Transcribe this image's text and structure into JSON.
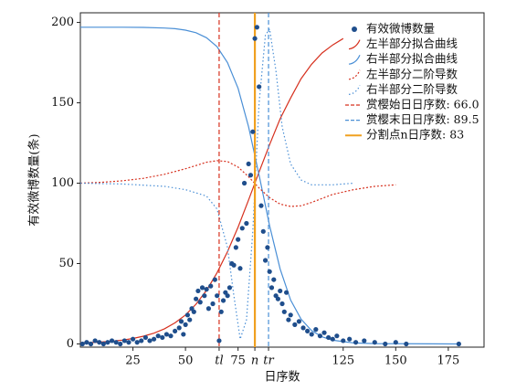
{
  "chart_data": {
    "type": "scatter",
    "xlabel": "日序数",
    "ylabel": "有效微博数量(条)",
    "xlim": [
      0,
      192
    ],
    "ylim": [
      -2,
      206
    ],
    "xticks": [
      25,
      50,
      {
        "value": 66,
        "label": "tl"
      },
      75,
      {
        "value": 83,
        "label": "n"
      },
      {
        "value": 89.5,
        "label": "tr"
      },
      125,
      150,
      175
    ],
    "yticks": [
      0,
      50,
      100,
      150,
      200
    ],
    "scatter": {
      "name": "有效微博数量",
      "color": "#1f4e8c",
      "x": [
        1,
        3,
        5,
        7,
        9,
        11,
        13,
        15,
        17,
        19,
        21,
        23,
        25,
        27,
        29,
        31,
        33,
        35,
        37,
        39,
        41,
        43,
        45,
        47,
        48,
        49,
        50,
        51,
        52,
        53,
        54,
        55,
        56,
        57,
        58,
        59,
        60,
        61,
        62,
        63,
        64,
        65,
        66,
        67,
        68,
        69,
        70,
        71,
        72,
        73,
        74,
        75,
        76,
        77,
        78,
        79,
        80,
        81,
        82,
        83,
        84,
        85,
        86,
        87,
        88,
        89,
        90,
        91,
        92,
        93,
        94,
        95,
        96,
        97,
        98,
        99,
        100,
        102,
        104,
        106,
        108,
        110,
        112,
        114,
        116,
        118,
        120,
        122,
        125,
        128,
        131,
        135,
        140,
        145,
        150,
        155,
        180
      ],
      "y": [
        0,
        1,
        0,
        2,
        1,
        0,
        1,
        2,
        1,
        0,
        2,
        1,
        3,
        1,
        2,
        4,
        2,
        3,
        5,
        4,
        6,
        5,
        8,
        10,
        14,
        6,
        12,
        18,
        15,
        22,
        20,
        28,
        33,
        26,
        35,
        30,
        34,
        22,
        36,
        25,
        40,
        30,
        2,
        20,
        27,
        32,
        30,
        35,
        50,
        49,
        60,
        65,
        47,
        72,
        100,
        75,
        112,
        105,
        132,
        190,
        197,
        160,
        86,
        70,
        52,
        60,
        45,
        35,
        40,
        30,
        28,
        33,
        25,
        20,
        32,
        15,
        18,
        12,
        14,
        10,
        8,
        6,
        9,
        5,
        7,
        4,
        3,
        5,
        2,
        3,
        1,
        2,
        1,
        0,
        1,
        0,
        0
      ]
    },
    "curves": [
      {
        "name": "左半部分拟合曲线",
        "color": "#d6301e",
        "dash": "none",
        "x": [
          0,
          5,
          10,
          15,
          20,
          25,
          30,
          35,
          40,
          45,
          50,
          55,
          60,
          65,
          70,
          75,
          80,
          85,
          90,
          95,
          100,
          105,
          110,
          115,
          120,
          125
        ],
        "values": [
          0.6,
          0.85,
          1.2,
          1.7,
          2.4,
          3.4,
          4.8,
          6.7,
          9.4,
          13.1,
          18.0,
          24.7,
          33.3,
          44.2,
          57.4,
          72.7,
          89.6,
          107,
          124,
          140,
          153,
          165,
          174,
          181,
          186,
          190
        ]
      },
      {
        "name": "右半部分拟合曲线",
        "color": "#4a8fd6",
        "dash": "none",
        "x": [
          0,
          10,
          20,
          30,
          40,
          45,
          50,
          55,
          60,
          65,
          70,
          75,
          80,
          85,
          90,
          95,
          100,
          105,
          110,
          115,
          120,
          130,
          140,
          180
        ],
        "values": [
          197,
          197,
          197,
          196.9,
          196.5,
          196.1,
          195.2,
          193.6,
          190.5,
          185,
          175,
          159,
          135,
          105,
          73.5,
          46.7,
          27.3,
          15.4,
          8.3,
          4.4,
          2.3,
          0.6,
          0.2,
          0
        ]
      },
      {
        "name": "左半部分二阶导数",
        "color": "#d6301e",
        "dash": "2,2",
        "x": [
          0,
          10,
          20,
          30,
          40,
          50,
          55,
          60,
          65,
          70,
          75,
          80,
          85,
          90,
          95,
          100,
          105,
          110,
          115,
          120,
          130,
          140,
          150
        ],
        "values": [
          100,
          100.5,
          101.5,
          103,
          105.5,
          109,
          111,
          113,
          114,
          113.5,
          110,
          104,
          97,
          91,
          87,
          85.5,
          86,
          88,
          90.5,
          93,
          96,
          98,
          99
        ]
      },
      {
        "name": "右半部分二阶导数",
        "color": "#4a8fd6",
        "dash": "1.5,2.5",
        "x": [
          0,
          20,
          40,
          50,
          55,
          60,
          65,
          70,
          73,
          76,
          79,
          82,
          85,
          88,
          90,
          93,
          96,
          100,
          105,
          110,
          120,
          130
        ],
        "values": [
          100,
          99.5,
          98,
          96,
          94,
          92,
          84,
          60,
          30,
          3,
          15,
          70,
          150,
          192,
          196,
          170,
          135,
          112,
          102,
          99,
          99,
          100
        ]
      }
    ],
    "vlines": [
      {
        "name": "赏樱始日日序数: 66.0",
        "color": "#d6301e",
        "dash": "5,3",
        "x": 66
      },
      {
        "name": "赏樱末日日序数: 89.5",
        "color": "#4a8fd6",
        "dash": "5,3",
        "x": 89.5
      },
      {
        "name": "分割点n日序数: 83",
        "color": "#f0a020",
        "dash": "none",
        "x": 83
      }
    ]
  }
}
